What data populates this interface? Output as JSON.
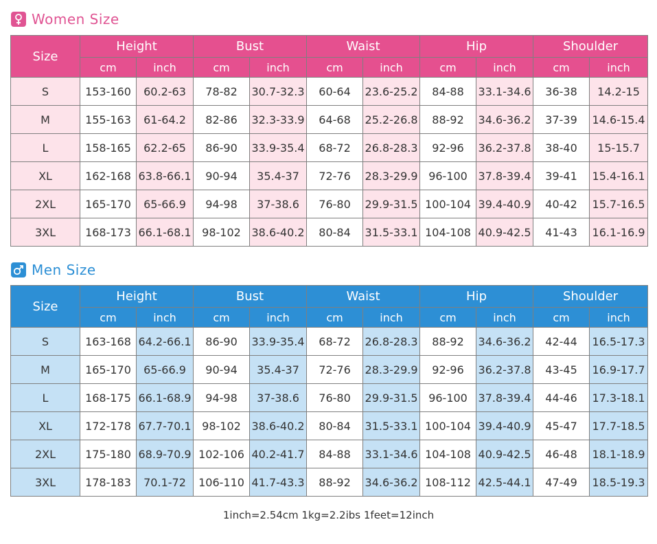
{
  "women": {
    "title": "Women Size",
    "icon": "female-icon",
    "header_color": "#e5508f",
    "tint_color": "#fde3ea",
    "size_label": "Size",
    "groups": [
      "Height",
      "Bust",
      "Waist",
      "Hip",
      "Shoulder"
    ],
    "units": [
      "cm",
      "inch"
    ],
    "rows": [
      [
        "S",
        "153-160",
        "60.2-63",
        "78-82",
        "30.7-32.3",
        "60-64",
        "23.6-25.2",
        "84-88",
        "33.1-34.6",
        "36-38",
        "14.2-15"
      ],
      [
        "M",
        "155-163",
        "61-64.2",
        "82-86",
        "32.3-33.9",
        "64-68",
        "25.2-26.8",
        "88-92",
        "34.6-36.2",
        "37-39",
        "14.6-15.4"
      ],
      [
        "L",
        "158-165",
        "62.2-65",
        "86-90",
        "33.9-35.4",
        "68-72",
        "26.8-28.3",
        "92-96",
        "36.2-37.8",
        "38-40",
        "15-15.7"
      ],
      [
        "XL",
        "162-168",
        "63.8-66.1",
        "90-94",
        "35.4-37",
        "72-76",
        "28.3-29.9",
        "96-100",
        "37.8-39.4",
        "39-41",
        "15.4-16.1"
      ],
      [
        "2XL",
        "165-170",
        "65-66.9",
        "94-98",
        "37-38.6",
        "76-80",
        "29.9-31.5",
        "100-104",
        "39.4-40.9",
        "40-42",
        "15.7-16.5"
      ],
      [
        "3XL",
        "168-173",
        "66.1-68.1",
        "98-102",
        "38.6-40.2",
        "80-84",
        "31.5-33.1",
        "104-108",
        "40.9-42.5",
        "41-43",
        "16.1-16.9"
      ]
    ]
  },
  "men": {
    "title": "Men Size",
    "icon": "male-icon",
    "header_color": "#2d8fd5",
    "tint_color": "#c5e1f5",
    "size_label": "Size",
    "groups": [
      "Height",
      "Bust",
      "Waist",
      "Hip",
      "Shoulder"
    ],
    "units": [
      "cm",
      "inch"
    ],
    "rows": [
      [
        "S",
        "163-168",
        "64.2-66.1",
        "86-90",
        "33.9-35.4",
        "68-72",
        "26.8-28.3",
        "88-92",
        "34.6-36.2",
        "42-44",
        "16.5-17.3"
      ],
      [
        "M",
        "165-170",
        "65-66.9",
        "90-94",
        "35.4-37",
        "72-76",
        "28.3-29.9",
        "92-96",
        "36.2-37.8",
        "43-45",
        "16.9-17.7"
      ],
      [
        "L",
        "168-175",
        "66.1-68.9",
        "94-98",
        "37-38.6",
        "76-80",
        "29.9-31.5",
        "96-100",
        "37.8-39.4",
        "44-46",
        "17.3-18.1"
      ],
      [
        "XL",
        "172-178",
        "67.7-70.1",
        "98-102",
        "38.6-40.2",
        "80-84",
        "31.5-33.1",
        "100-104",
        "39.4-40.9",
        "45-47",
        "17.7-18.5"
      ],
      [
        "2XL",
        "175-180",
        "68.9-70.9",
        "102-106",
        "40.2-41.7",
        "84-88",
        "33.1-34.6",
        "104-108",
        "40.9-42.5",
        "46-48",
        "18.1-18.9"
      ],
      [
        "3XL",
        "178-183",
        "70.1-72",
        "106-110",
        "41.7-43.3",
        "88-92",
        "34.6-36.2",
        "108-112",
        "42.5-44.1",
        "47-49",
        "18.5-19.3"
      ]
    ]
  },
  "footer": {
    "note": "1inch=2.54cm  1kg=2.2ibs  1feet=12inch"
  }
}
